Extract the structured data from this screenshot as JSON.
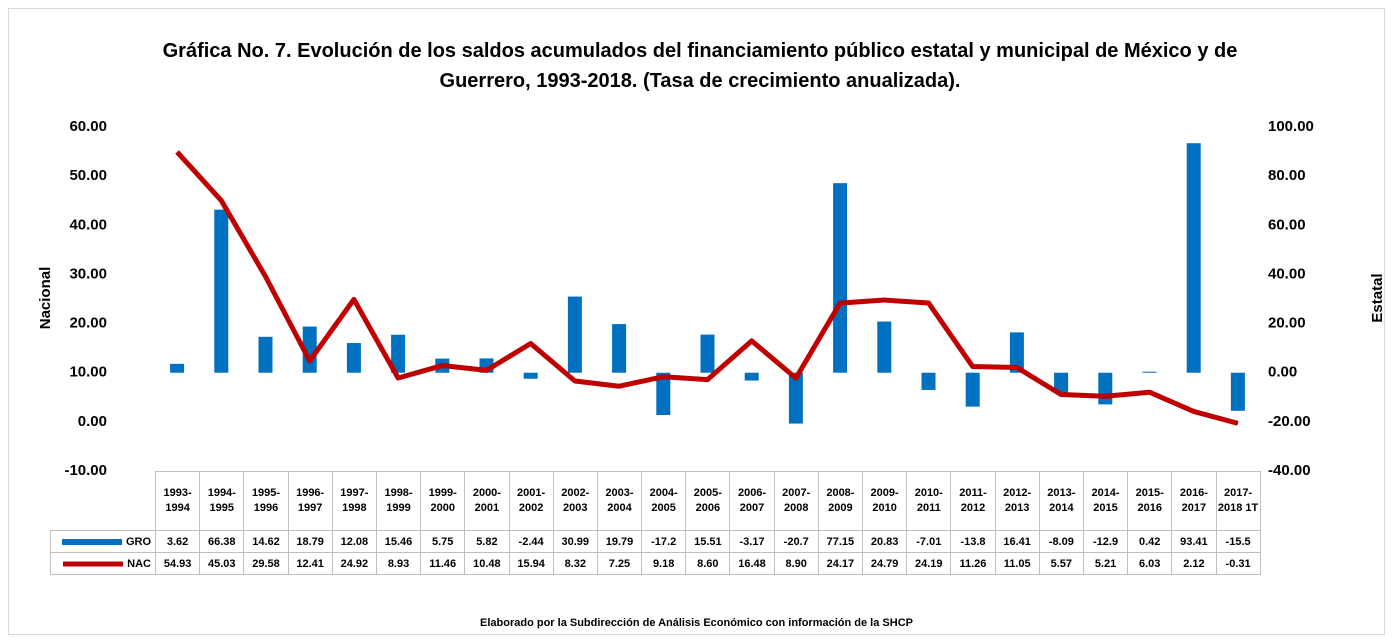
{
  "chart_data": {
    "type": "combo",
    "title": "Gráfica No. 7. Evolución de los saldos acumulados del financiamiento público estatal y municipal de México y de Guerrero, 1993-2018. (Tasa de crecimiento anualizada).",
    "ylabel": "Nacional",
    "y2label": "Estatal",
    "footer": "Elaborado por la Subdirección de Análisis Económico con información de la SHCP",
    "categories": [
      "1993-1994",
      "1994-1995",
      "1995-1996",
      "1996-1997",
      "1997-1998",
      "1998-1999",
      "1999-2000",
      "2000-2001",
      "2001-2002",
      "2002-2003",
      "2003-2004",
      "2004-2005",
      "2005-2006",
      "2006-2007",
      "2007-2008",
      "2008-2009",
      "2009-2010",
      "2010-2011",
      "2011-2012",
      "2012-2013",
      "2013-2014",
      "2014-2015",
      "2015-2016",
      "2016-2017",
      "2017-2018 1T"
    ],
    "series": [
      {
        "name": "GRO",
        "type": "bar",
        "axis": "y2",
        "color": "#0070c0",
        "values": [
          3.62,
          66.38,
          14.62,
          18.79,
          12.08,
          15.46,
          5.75,
          5.82,
          -2.44,
          30.99,
          19.79,
          -17.2,
          15.51,
          -3.17,
          -20.7,
          77.15,
          20.83,
          -7.01,
          -13.8,
          16.41,
          -8.09,
          -12.9,
          0.42,
          93.41,
          -15.5
        ],
        "value_labels": [
          "3.62",
          "66.38",
          "14.62",
          "18.79",
          "12.08",
          "15.46",
          "5.75",
          "5.82",
          "-2.44",
          "30.99",
          "19.79",
          "-17.2",
          "15.51",
          "-3.17",
          "-20.7",
          "77.15",
          "20.83",
          "-7.01",
          "-13.8",
          "16.41",
          "-8.09",
          "-12.9",
          "0.42",
          "93.41",
          "-15.5"
        ]
      },
      {
        "name": "NAC",
        "type": "line",
        "color": "#c00000",
        "values": [
          54.93,
          45.03,
          29.58,
          12.41,
          24.92,
          8.93,
          11.46,
          10.48,
          15.94,
          8.32,
          7.25,
          9.18,
          8.6,
          16.48,
          8.9,
          24.17,
          24.79,
          24.19,
          11.26,
          11.05,
          5.57,
          5.21,
          6.03,
          2.12,
          -0.31
        ],
        "value_labels": [
          "54.93",
          "45.03",
          "29.58",
          "12.41",
          "24.92",
          "8.93",
          "11.46",
          "10.48",
          "15.94",
          "8.32",
          "7.25",
          "9.18",
          "8.60",
          "16.48",
          "8.90",
          "24.17",
          "24.79",
          "24.19",
          "11.26",
          "11.05",
          "5.57",
          "5.21",
          "6.03",
          "2.12",
          "-0.31"
        ]
      }
    ],
    "ylim": [
      -10,
      60
    ],
    "yticks": [
      {
        "value": -10,
        "label": "-10.00"
      },
      {
        "value": 0,
        "label": "0.00"
      },
      {
        "value": 10,
        "label": "10.00"
      },
      {
        "value": 20,
        "label": "20.00"
      },
      {
        "value": 30,
        "label": "30.00"
      },
      {
        "value": 40,
        "label": "40.00"
      },
      {
        "value": 50,
        "label": "50.00"
      },
      {
        "value": 60,
        "label": "60.00"
      }
    ],
    "y2lim": [
      -40,
      100
    ],
    "y2ticks": [
      {
        "value": -40,
        "label": "-40.00"
      },
      {
        "value": -20,
        "label": "-20.00"
      },
      {
        "value": 0,
        "label": "0.00"
      },
      {
        "value": 20,
        "label": "20.00"
      },
      {
        "value": 40,
        "label": "40.00"
      },
      {
        "value": 60,
        "label": "60.00"
      },
      {
        "value": 80,
        "label": "80.00"
      },
      {
        "value": 100,
        "label": "100.00"
      }
    ]
  }
}
